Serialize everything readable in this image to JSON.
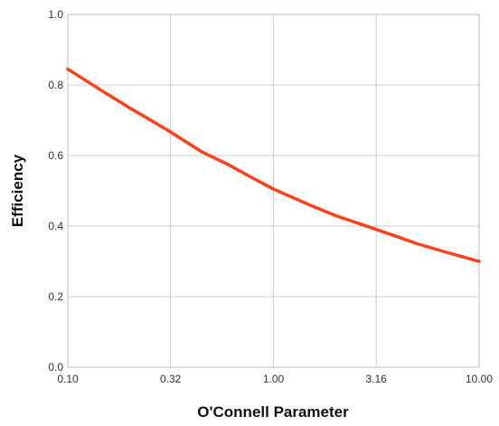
{
  "chart_data": {
    "type": "line",
    "title": "",
    "xlabel": "O'Connell Parameter",
    "ylabel": "Efficiency",
    "xscale": "log",
    "xlim": [
      0.1,
      10.0
    ],
    "ylim": [
      0.0,
      1.0
    ],
    "x_ticks": [
      "0.10",
      "0.32",
      "1.00",
      "3.16",
      "10.00"
    ],
    "x_tick_values": [
      0.1,
      0.316,
      1.0,
      3.16,
      10.0
    ],
    "y_ticks": [
      "0.0",
      "0.2",
      "0.4",
      "0.6",
      "0.8",
      "1.0"
    ],
    "y_tick_values": [
      0.0,
      0.2,
      0.4,
      0.6,
      0.8,
      1.0
    ],
    "grid": true,
    "legend": "none",
    "series": [
      {
        "color": "#ff4019",
        "x": [
          0.1,
          0.15,
          0.2,
          0.3,
          0.45,
          0.6,
          0.8,
          1.0,
          1.5,
          2.0,
          3.0,
          4.0,
          5.0,
          7.0,
          10.0
        ],
        "values": [
          0.845,
          0.78,
          0.735,
          0.675,
          0.61,
          0.575,
          0.535,
          0.505,
          0.46,
          0.43,
          0.395,
          0.37,
          0.35,
          0.325,
          0.3
        ]
      }
    ]
  }
}
